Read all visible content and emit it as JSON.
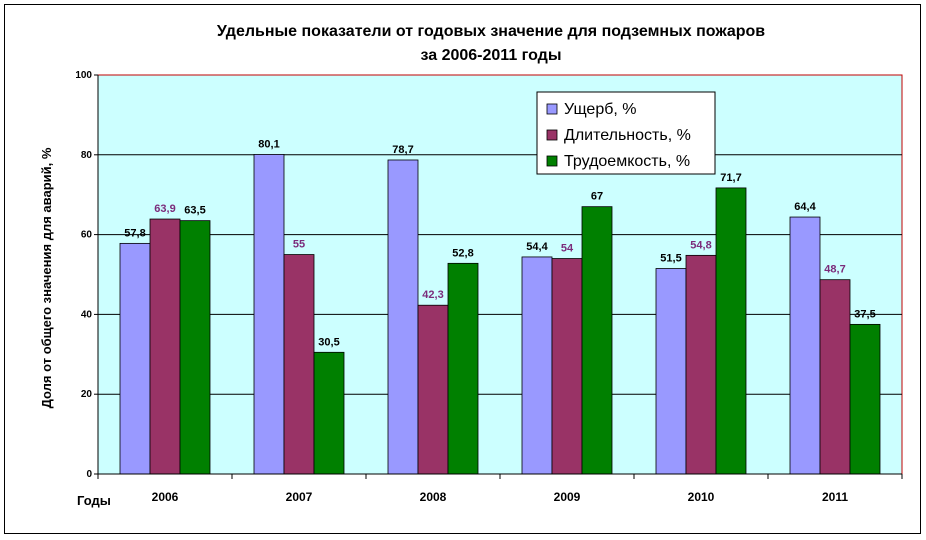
{
  "chart_data": {
    "type": "bar",
    "title_lines": [
      "Удельные показатели от годовых значение для подземных пожаров",
      "за 2006-2011 годы"
    ],
    "xlabel": "Годы",
    "ylabel": "Доля от общего значения для аварий, %",
    "ylim": [
      0,
      100
    ],
    "yticks": [
      "0",
      "20",
      "40",
      "60",
      "80",
      "100"
    ],
    "grid": true,
    "legend_position": "top-right",
    "categories": [
      "2006",
      "2007",
      "2008",
      "2009",
      "2010",
      "2011"
    ],
    "series": [
      {
        "name": "Ущерб, %",
        "color": "#9999FF",
        "label_color": "#000000",
        "values": [
          57.8,
          80.1,
          78.7,
          54.4,
          51.5,
          64.4
        ],
        "labels": [
          "57,8",
          "80,1",
          "78,7",
          "54,4",
          "51,5",
          "64,4"
        ]
      },
      {
        "name": "Длительность, %",
        "color": "#993366",
        "label_color": "#7B2C7B",
        "values": [
          63.9,
          55,
          42.3,
          54,
          54.8,
          48.7
        ],
        "labels": [
          "63,9",
          "55",
          "42,3",
          "54",
          "54,8",
          "48,7"
        ]
      },
      {
        "name": "Трудоемкость, %",
        "color": "#008000",
        "label_color": "#000000",
        "values": [
          63.5,
          30.5,
          52.8,
          67,
          71.7,
          37.5
        ],
        "labels": [
          "63,5",
          "30,5",
          "52,8",
          "67",
          "71,7",
          "37,5"
        ]
      }
    ],
    "plot_background": "#CCFFFF",
    "plot_border_color": "#C00000"
  }
}
